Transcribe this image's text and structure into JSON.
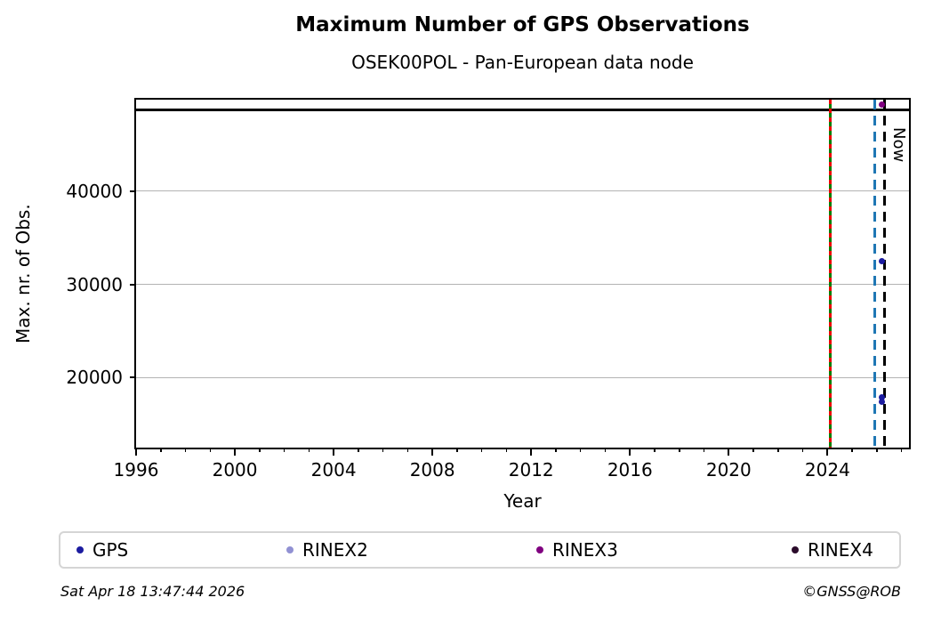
{
  "chart_data": {
    "type": "scatter",
    "title": "Maximum Number of GPS Observations",
    "subtitle": "OSEK00POL - Pan-European data node",
    "xlabel": "Year",
    "ylabel": "Max. nr. of Obs.",
    "xlim": [
      1996,
      2027.3
    ],
    "ylim": [
      12500,
      49800
    ],
    "x_major_ticks": [
      1996,
      2000,
      2004,
      2008,
      2012,
      2016,
      2020,
      2024
    ],
    "x_minor_ticks": {
      "start": 1996,
      "end": 2027,
      "step": 1
    },
    "y_ticks": [
      20000,
      30000,
      40000
    ],
    "grid": "horizontal",
    "grid_color": "#b3b3b3",
    "hlines": [
      {
        "name": "max-obs-line",
        "y": 48700,
        "color": "#000000",
        "style": "solid"
      }
    ],
    "vlines": [
      {
        "name": "green-event-line",
        "x": 2024.1,
        "color": "#008000",
        "style": "solid"
      },
      {
        "name": "red-event-line",
        "x": 2024.1,
        "color": "#ee0000",
        "style": "dashed",
        "dash": [
          5,
          5
        ]
      },
      {
        "name": "blue-event-line",
        "x": 2025.9,
        "color": "#1f77b4",
        "style": "dashed",
        "dash": [
          11,
          7
        ]
      },
      {
        "name": "now-line",
        "x": 2026.3,
        "color": "#000000",
        "style": "dashed",
        "dash": [
          11,
          7
        ],
        "label": "Now"
      }
    ],
    "series": [
      {
        "name": "GPS",
        "color": "#1c1ca0",
        "points": [
          {
            "x": 2026.2,
            "y": 32500
          },
          {
            "x": 2026.2,
            "y": 17900
          },
          {
            "x": 2026.2,
            "y": 17400
          }
        ]
      },
      {
        "name": "RINEX2",
        "color": "#9191d3",
        "points": []
      },
      {
        "name": "RINEX3",
        "color": "#800080",
        "points": [
          {
            "x": 2026.2,
            "y": 49300
          }
        ]
      },
      {
        "name": "RINEX4",
        "color": "#2b0b2b",
        "points": []
      }
    ],
    "legend_position": "bottom"
  },
  "footer": {
    "timestamp": "Sat Apr 18 13:47:44 2026",
    "credit": "©GNSS@ROB"
  }
}
